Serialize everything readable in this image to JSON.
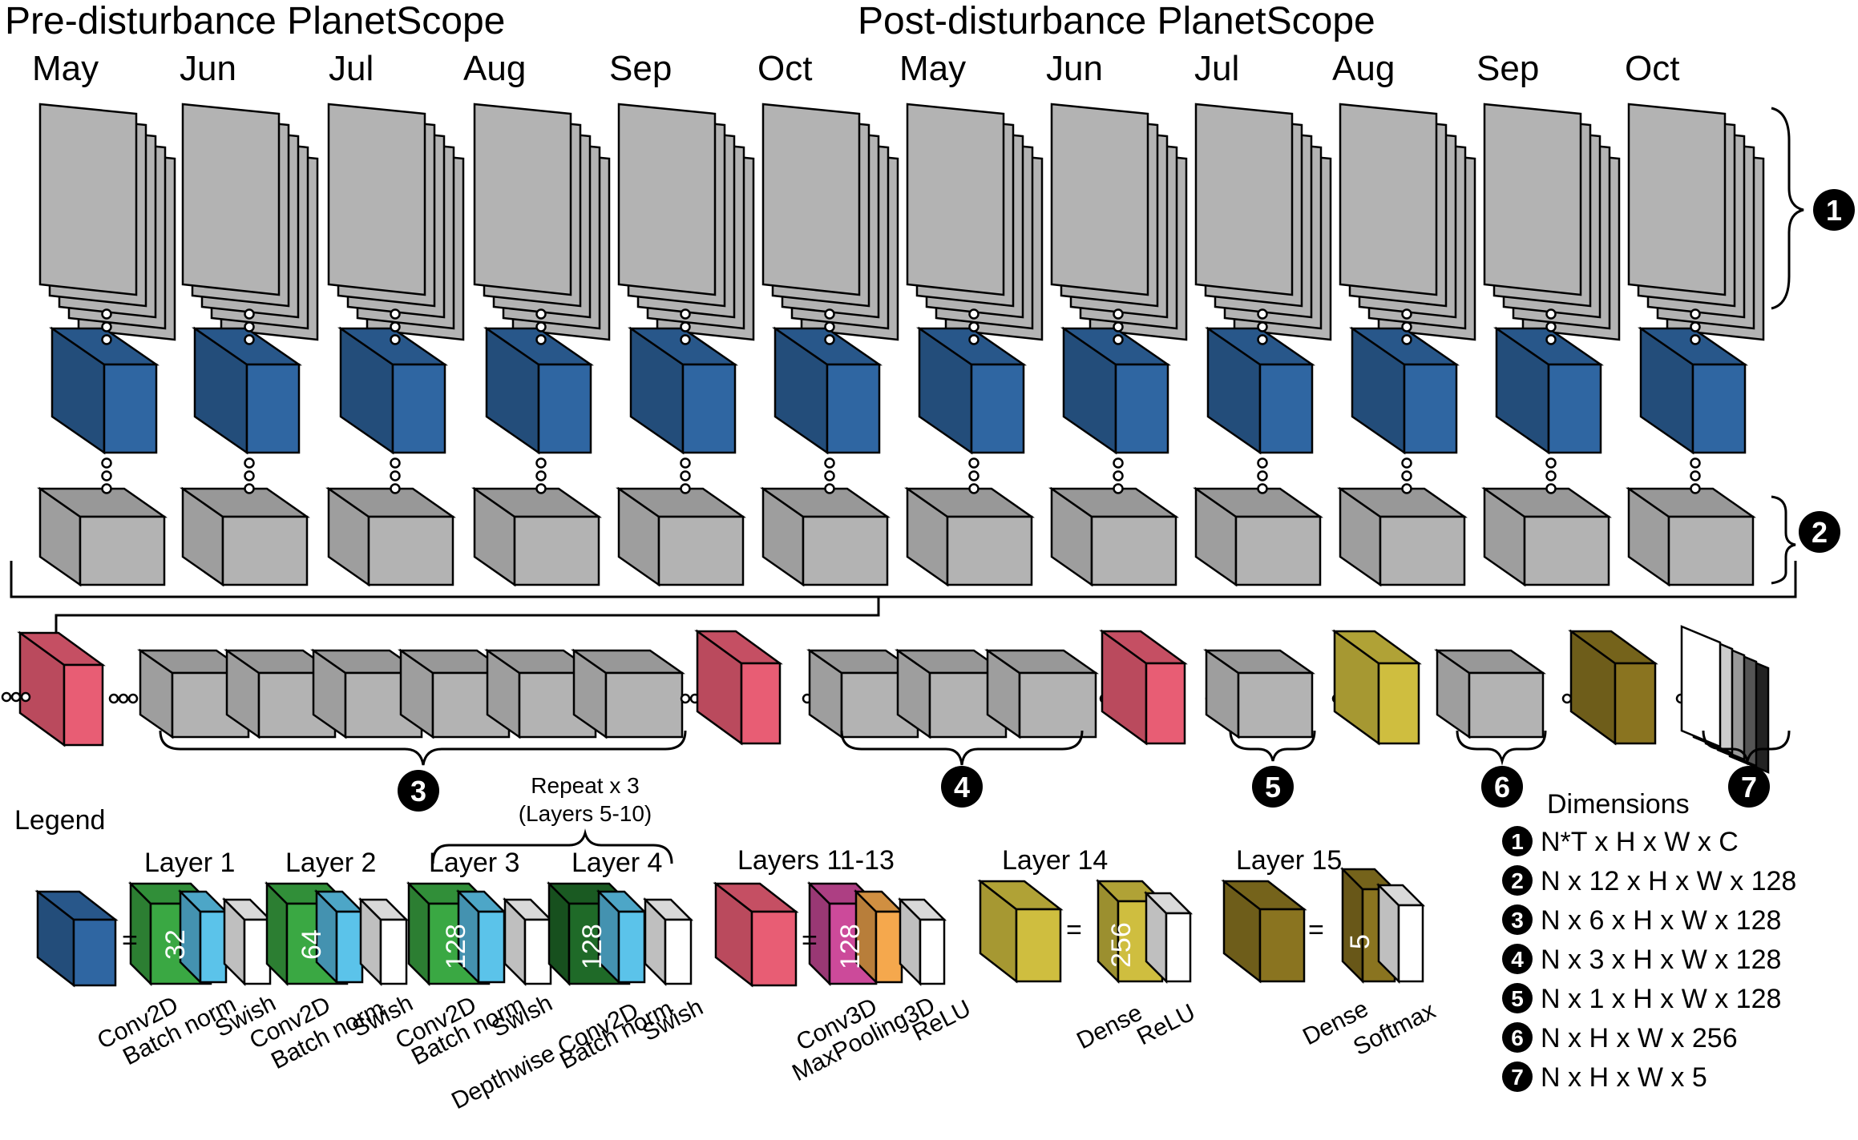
{
  "header": {
    "pre_title": "Pre-disturbance PlanetScope",
    "post_title": "Post-disturbance PlanetScope"
  },
  "months": [
    "May",
    "Jun",
    "Jul",
    "Aug",
    "Sep",
    "Oct",
    "May",
    "Jun",
    "Jul",
    "Aug",
    "Sep",
    "Oct"
  ],
  "markers": [
    "1",
    "2",
    "3",
    "4",
    "5",
    "6",
    "7"
  ],
  "repeat": {
    "line1": "Repeat x 3",
    "line2": "(Layers 5-10)"
  },
  "legend": {
    "title": "Legend",
    "equals": "=",
    "layer1": {
      "title": "Layer 1",
      "channels": "32",
      "labels": [
        "Conv2D",
        "Batch norm",
        "Swish"
      ]
    },
    "layer2": {
      "title": "Layer 2",
      "channels": "64",
      "labels": [
        "Conv2D",
        "Batch norm",
        "Swish"
      ]
    },
    "layer3": {
      "title": "Layer 3",
      "channels": "128",
      "labels": [
        "Conv2D",
        "Batch norm",
        "Swish"
      ]
    },
    "layer4": {
      "title": "Layer 4",
      "channels": "128",
      "labels": [
        "Depthwise Conv2D",
        "Batch norm",
        "Swish"
      ]
    },
    "layers11": {
      "title": "Layers 11-13",
      "channels": "128",
      "labels": [
        "Conv3D",
        "MaxPooling3D",
        "ReLU"
      ]
    },
    "layer14": {
      "title": "Layer 14",
      "channels": "256",
      "labels": [
        "Dense",
        "ReLU"
      ]
    },
    "layer15": {
      "title": "Layer 15",
      "channels": "5",
      "labels": [
        "Dense",
        "Softmax"
      ]
    }
  },
  "dimensions": {
    "title": "Dimensions",
    "rows": [
      {
        "n": "1",
        "text": "N*T x H x W x C"
      },
      {
        "n": "2",
        "text": "N x 12 x H x W x 128"
      },
      {
        "n": "3",
        "text": "N x 6 x H x W x 128"
      },
      {
        "n": "4",
        "text": "N x 3 x H x W x 128"
      },
      {
        "n": "5",
        "text": "N x 1 x H x W x 128"
      },
      {
        "n": "6",
        "text": "N x H x W x 256"
      },
      {
        "n": "7",
        "text": "N x H x W x 5"
      }
    ]
  },
  "colors": {
    "gray": "#b3b3b3",
    "blue": "#2f66a2",
    "pink": "#e85d74",
    "yellow": "#cfbe3f",
    "olive": "#8a7420",
    "green": "#3aa843",
    "dark_green": "#1f6a28",
    "cyan": "#5bc3ea",
    "magenta": "#cc4a9a",
    "orange": "#f5a84d"
  }
}
